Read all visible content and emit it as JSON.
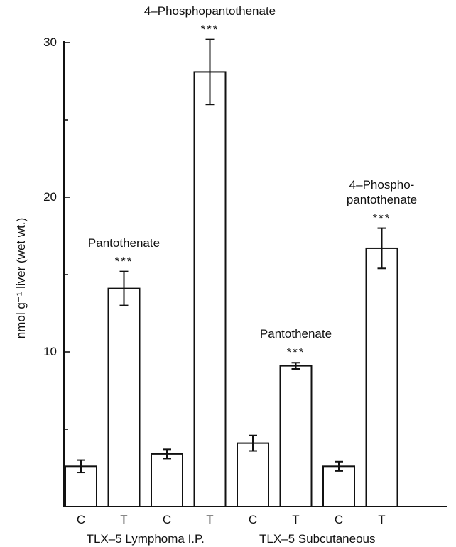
{
  "chart_data": {
    "type": "bar",
    "ylabel": "nmol g⁻¹ liver (wet wt.)",
    "ylim": [
      0,
      30
    ],
    "yticks": [
      10,
      20,
      30
    ],
    "grid": false,
    "categories": [
      "C",
      "T",
      "C",
      "T",
      "C",
      "T",
      "C",
      "T"
    ],
    "values": [
      2.6,
      14.1,
      3.4,
      28.1,
      4.1,
      9.1,
      2.6,
      16.7
    ],
    "errors": [
      0.4,
      1.1,
      0.3,
      2.1,
      0.5,
      0.2,
      0.3,
      1.3
    ],
    "groups": [
      {
        "label": "TLX–5 Lymphoma I.P.",
        "from": 0,
        "to": 3
      },
      {
        "label": "TLX–5 Subcutaneous",
        "from": 4,
        "to": 7
      }
    ],
    "annotations": [
      {
        "bar": 1,
        "label_lines": [
          "Pantothenate"
        ],
        "stars": "***"
      },
      {
        "bar": 3,
        "label_lines": [
          "4–Phosphopantothenate"
        ],
        "stars": "***"
      },
      {
        "bar": 5,
        "label_lines": [
          "Pantothenate"
        ],
        "stars": "***"
      },
      {
        "bar": 7,
        "label_lines": [
          "4–Phospho-",
          "pantothenate"
        ],
        "stars": "***"
      }
    ]
  }
}
